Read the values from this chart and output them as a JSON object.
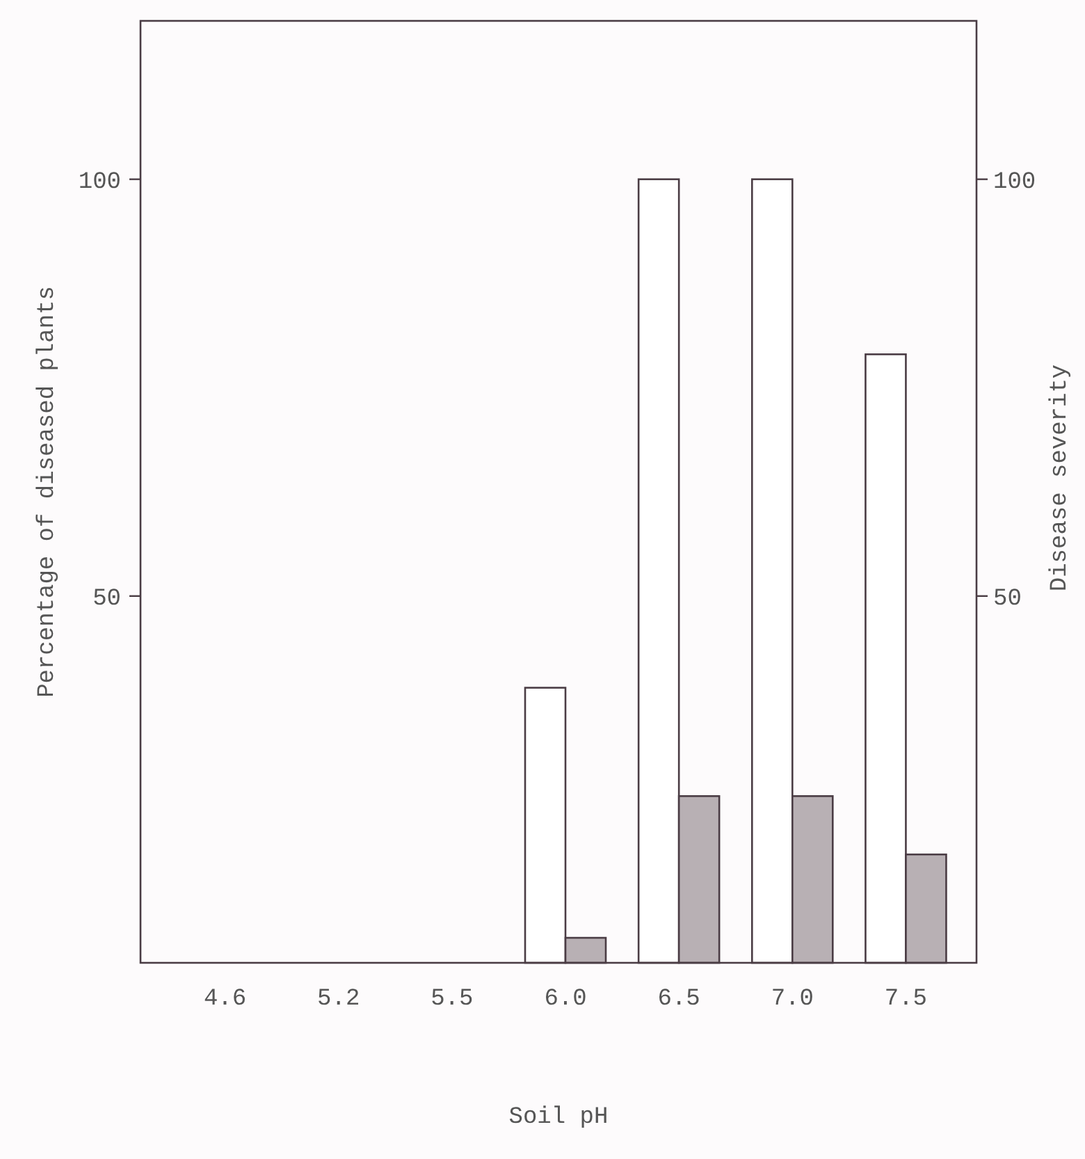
{
  "chart_data": {
    "type": "bar",
    "xlabel": "Soil pH",
    "ylabel": "Percentage of diseased plants",
    "y2label": "Disease severity",
    "categories": [
      "4.6",
      "5.2",
      "5.5",
      "6.0",
      "6.5",
      "7.0",
      "7.5"
    ],
    "series": [
      {
        "color": "#ffffff",
        "values": [
          null,
          null,
          null,
          39,
          100,
          100,
          79
        ]
      },
      {
        "color": "#b8b0b4",
        "values": [
          null,
          null,
          null,
          9,
          26,
          26,
          19
        ]
      }
    ],
    "ylim": [
      6,
      119
    ],
    "yticks": [
      50,
      100
    ],
    "y2lim": [
      6,
      119
    ],
    "y2ticks": [
      50,
      100
    ],
    "grid": false
  }
}
